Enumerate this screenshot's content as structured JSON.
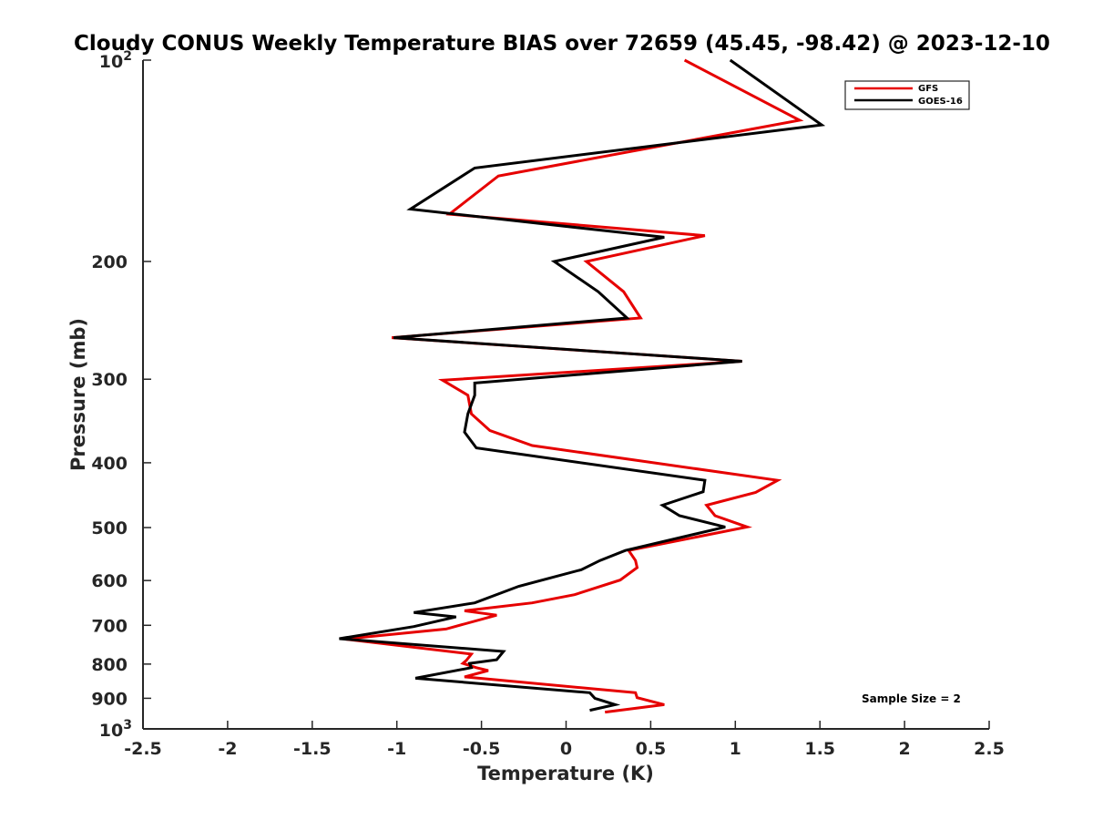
{
  "chart_data": {
    "type": "line",
    "title": "Cloudy CONUS Weekly Temperature BIAS over 72659 (45.45, -98.42) @ 2023-12-10",
    "xlabel": "Temperature (K)",
    "ylabel": "Pressure (mb)",
    "xlim": [
      -2.5,
      2.5
    ],
    "ylim": [
      100,
      1000
    ],
    "yscale": "log",
    "yreversed": true,
    "grid": false,
    "legend_position": "top-right",
    "x_ticks": [
      -2.5,
      -2,
      -1.5,
      -1,
      -0.5,
      0,
      0.5,
      1,
      1.5,
      2,
      2.5
    ],
    "x_tick_labels": [
      "-2.5",
      "-2",
      "-1.5",
      "-1",
      "-0.5",
      "0",
      "0.5",
      "1",
      "1.5",
      "2",
      "2.5"
    ],
    "y_ticks": [
      {
        "value": 200,
        "label": "200"
      },
      {
        "value": 300,
        "label": "300"
      },
      {
        "value": 400,
        "label": "400"
      },
      {
        "value": 500,
        "label": "500"
      },
      {
        "value": 600,
        "label": "600"
      },
      {
        "value": 700,
        "label": "700"
      },
      {
        "value": 800,
        "label": "800"
      },
      {
        "value": 900,
        "label": "900"
      }
    ],
    "y_end_ticks": [
      {
        "value": 100,
        "base": "10",
        "exp": "2"
      },
      {
        "value": 1000,
        "base": "10",
        "exp": "3"
      }
    ],
    "annotation": "Sample Size = 2",
    "series": [
      {
        "name": "GFS",
        "color": "#e60000",
        "points": [
          [
            0.7,
            100
          ],
          [
            1.38,
            123
          ],
          [
            -0.4,
            149
          ],
          [
            -0.69,
            170
          ],
          [
            0.82,
            183
          ],
          [
            0.12,
            200
          ],
          [
            0.34,
            222
          ],
          [
            0.44,
            243
          ],
          [
            -1.03,
            260
          ],
          [
            1.04,
            282
          ],
          [
            -0.73,
            301
          ],
          [
            -0.58,
            317
          ],
          [
            -0.56,
            338
          ],
          [
            -0.45,
            358
          ],
          [
            -0.2,
            377
          ],
          [
            1.25,
            425
          ],
          [
            1.12,
            443
          ],
          [
            0.83,
            463
          ],
          [
            0.88,
            480
          ],
          [
            1.07,
            499
          ],
          [
            0.37,
            541
          ],
          [
            0.41,
            560
          ],
          [
            0.42,
            574
          ],
          [
            0.32,
            599
          ],
          [
            0.05,
            630
          ],
          [
            -0.2,
            648
          ],
          [
            -0.6,
            666
          ],
          [
            -0.41,
            676
          ],
          [
            -0.71,
            709
          ],
          [
            -1.31,
            734
          ],
          [
            -0.56,
            773
          ],
          [
            -0.59,
            790
          ],
          [
            -0.61,
            798
          ],
          [
            -0.53,
            810
          ],
          [
            -0.46,
            818
          ],
          [
            -0.6,
            836
          ],
          [
            0.41,
            883
          ],
          [
            0.42,
            898
          ],
          [
            0.58,
            920
          ],
          [
            0.23,
            944
          ]
        ]
      },
      {
        "name": "GOES-16",
        "color": "#000000",
        "points": [
          [
            0.97,
            100
          ],
          [
            1.51,
            125
          ],
          [
            -0.54,
            145
          ],
          [
            -0.92,
            167
          ],
          [
            0.58,
            184
          ],
          [
            -0.07,
            200
          ],
          [
            0.19,
            222
          ],
          [
            0.36,
            243
          ],
          [
            -1.02,
            260
          ],
          [
            1.04,
            282
          ],
          [
            -0.54,
            304
          ],
          [
            -0.54,
            317
          ],
          [
            -0.58,
            338
          ],
          [
            -0.6,
            360
          ],
          [
            -0.53,
            380
          ],
          [
            0.82,
            425
          ],
          [
            0.81,
            442
          ],
          [
            0.57,
            463
          ],
          [
            0.67,
            480
          ],
          [
            0.94,
            499
          ],
          [
            0.35,
            541
          ],
          [
            0.2,
            560
          ],
          [
            0.09,
            578
          ],
          [
            -0.28,
            612
          ],
          [
            -0.54,
            648
          ],
          [
            -0.9,
            670
          ],
          [
            -0.65,
            680
          ],
          [
            -0.9,
            703
          ],
          [
            -1.34,
            733
          ],
          [
            -0.37,
            766
          ],
          [
            -0.41,
            788
          ],
          [
            -0.57,
            798
          ],
          [
            -0.56,
            810
          ],
          [
            -0.89,
            840
          ],
          [
            0.14,
            883
          ],
          [
            0.17,
            900
          ],
          [
            0.29,
            920
          ],
          [
            0.14,
            938
          ]
        ]
      }
    ]
  }
}
